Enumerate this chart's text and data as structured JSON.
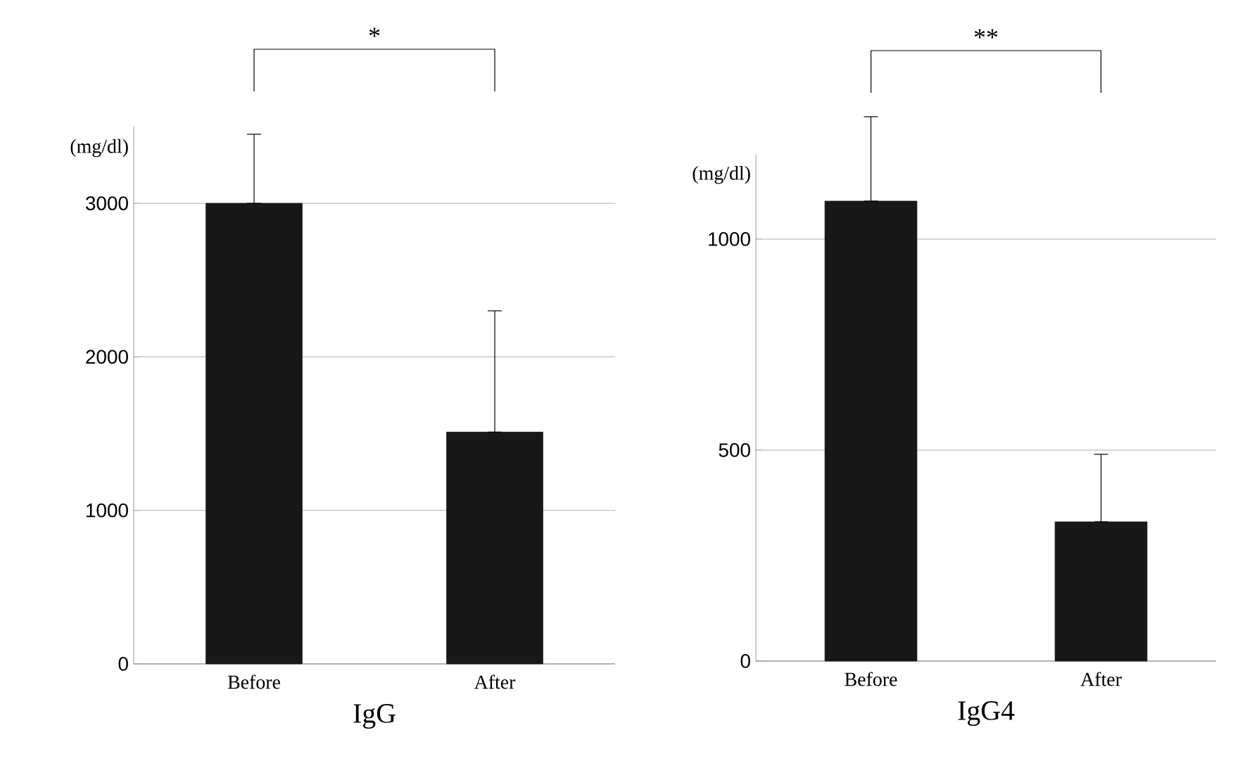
{
  "chart_data": [
    {
      "type": "bar",
      "xlabel": "IgG",
      "ylabel": "(mg/dl)",
      "categories": [
        "Before",
        "After"
      ],
      "values": [
        3000,
        1510
      ],
      "errors": [
        [
          3000,
          3450
        ],
        [
          1510,
          2300
        ]
      ],
      "color": "#181818",
      "ylim": [
        0,
        3500
      ],
      "yticks": [
        0,
        1000,
        2000,
        3000
      ],
      "grid": "y",
      "annotations": [
        "*"
      ]
    },
    {
      "type": "bar",
      "xlabel": "IgG4",
      "ylabel": "(mg/dl)",
      "categories": [
        "Before",
        "After"
      ],
      "values": [
        1090,
        330
      ],
      "errors": [
        [
          1090,
          1290
        ],
        [
          330,
          490
        ]
      ],
      "color": "#181818",
      "ylim": [
        0,
        1200
      ],
      "yticks": [
        0,
        500,
        1000
      ],
      "grid": "y",
      "annotations": [
        "**"
      ]
    }
  ]
}
